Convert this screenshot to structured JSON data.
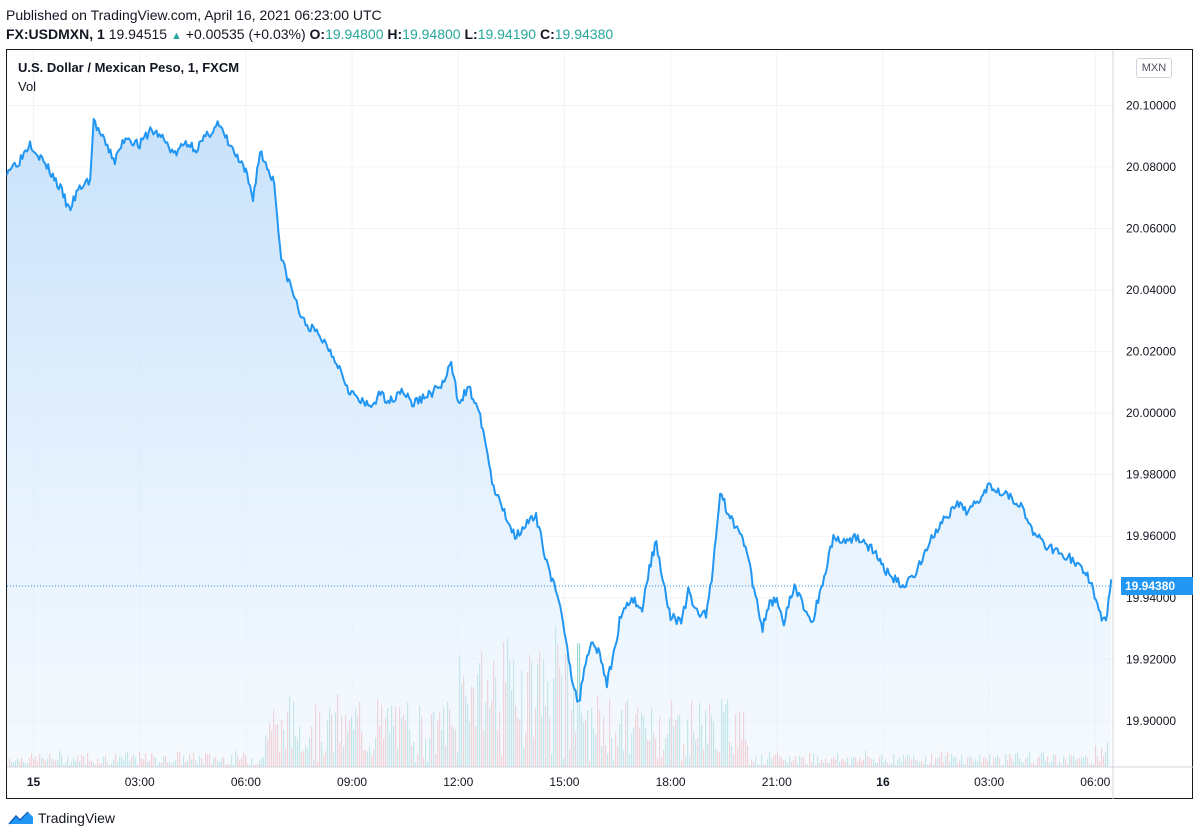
{
  "header": {
    "published": "Published on TradingView.com, April 16, 2021 06:23:00 UTC",
    "symbol": "FX:USDMXN, 1",
    "last": "19.94515",
    "arrow": "▲",
    "change": "+0.00535 (+0.03%)",
    "o_label": "O:",
    "o_value": "19.94800",
    "h_label": "H:",
    "h_value": "19.94800",
    "l_label": "L:",
    "l_value": "19.94190",
    "c_label": "C:",
    "c_value": "19.94380"
  },
  "chart": {
    "title": "U.S. Dollar / Mexican Peso, 1, FXCM",
    "vol_label": "Vol",
    "currency": "MXN",
    "current_price_label": "19.94380",
    "colors": {
      "line": "#2196f3",
      "fill_top": "#cfe6fb",
      "vol_up": "#26a69a",
      "vol_down": "#ef5350",
      "grid": "#f0f3fa",
      "price_tag": "#2196f3"
    }
  },
  "footer": {
    "brand": "TradingView"
  },
  "chart_data": {
    "type": "area",
    "title": "U.S. Dollar / Mexican Peso, 1, FXCM",
    "xlabel": "",
    "ylabel": "MXN",
    "ylim": [
      19.885,
      20.118
    ],
    "x_range_hours": [
      -0.75,
      30.5
    ],
    "y_ticks": [
      "20.10000",
      "20.08000",
      "20.06000",
      "20.04000",
      "20.02000",
      "20.00000",
      "19.98000",
      "19.96000",
      "19.94000",
      "19.92000",
      "19.90000"
    ],
    "y_tick_values": [
      20.1,
      20.08,
      20.06,
      20.04,
      20.02,
      20.0,
      19.98,
      19.96,
      19.94,
      19.92,
      19.9
    ],
    "x_ticks": [
      {
        "label": "15",
        "h": 0,
        "bold": true
      },
      {
        "label": "03:00",
        "h": 3,
        "bold": false
      },
      {
        "label": "06:00",
        "h": 6,
        "bold": false
      },
      {
        "label": "09:00",
        "h": 9,
        "bold": false
      },
      {
        "label": "12:00",
        "h": 12,
        "bold": false
      },
      {
        "label": "15:00",
        "h": 15,
        "bold": false
      },
      {
        "label": "18:00",
        "h": 18,
        "bold": false
      },
      {
        "label": "21:00",
        "h": 21,
        "bold": false
      },
      {
        "label": "16",
        "h": 24,
        "bold": true
      },
      {
        "label": "03:00",
        "h": 27,
        "bold": false
      },
      {
        "label": "06:00",
        "h": 30,
        "bold": false
      }
    ],
    "series": [
      {
        "name": "FX:USDMXN",
        "points": [
          [
            -0.75,
            20.079
          ],
          [
            -0.4,
            20.082
          ],
          [
            -0.1,
            20.088
          ],
          [
            0.2,
            20.083
          ],
          [
            0.5,
            20.078
          ],
          [
            0.8,
            20.072
          ],
          [
            1.0,
            20.066
          ],
          [
            1.3,
            20.073
          ],
          [
            1.6,
            20.076
          ],
          [
            1.7,
            20.095
          ],
          [
            2.0,
            20.088
          ],
          [
            2.3,
            20.082
          ],
          [
            2.6,
            20.09
          ],
          [
            3.0,
            20.087
          ],
          [
            3.3,
            20.092
          ],
          [
            3.6,
            20.09
          ],
          [
            4.0,
            20.084
          ],
          [
            4.3,
            20.088
          ],
          [
            4.6,
            20.086
          ],
          [
            4.9,
            20.09
          ],
          [
            5.2,
            20.094
          ],
          [
            5.5,
            20.088
          ],
          [
            5.8,
            20.082
          ],
          [
            6.0,
            20.078
          ],
          [
            6.2,
            20.07
          ],
          [
            6.4,
            20.085
          ],
          [
            6.6,
            20.08
          ],
          [
            6.8,
            20.075
          ],
          [
            7.0,
            20.05
          ],
          [
            7.3,
            20.04
          ],
          [
            7.6,
            20.03
          ],
          [
            8.0,
            20.026
          ],
          [
            8.3,
            20.022
          ],
          [
            8.6,
            20.016
          ],
          [
            8.9,
            20.008
          ],
          [
            9.2,
            20.004
          ],
          [
            9.5,
            20.002
          ],
          [
            9.8,
            20.006
          ],
          [
            10.1,
            20.004
          ],
          [
            10.4,
            20.008
          ],
          [
            10.7,
            20.003
          ],
          [
            11.0,
            20.005
          ],
          [
            11.3,
            20.007
          ],
          [
            11.6,
            20.01
          ],
          [
            11.8,
            20.016
          ],
          [
            12.0,
            20.004
          ],
          [
            12.3,
            20.008
          ],
          [
            12.5,
            20.003
          ],
          [
            12.7,
            19.995
          ],
          [
            13.0,
            19.975
          ],
          [
            13.3,
            19.968
          ],
          [
            13.6,
            19.96
          ],
          [
            13.9,
            19.964
          ],
          [
            14.2,
            19.966
          ],
          [
            14.5,
            19.952
          ],
          [
            14.8,
            19.94
          ],
          [
            15.0,
            19.93
          ],
          [
            15.2,
            19.915
          ],
          [
            15.4,
            19.905
          ],
          [
            15.6,
            19.92
          ],
          [
            15.8,
            19.926
          ],
          [
            16.0,
            19.922
          ],
          [
            16.2,
            19.912
          ],
          [
            16.4,
            19.922
          ],
          [
            16.6,
            19.935
          ],
          [
            16.9,
            19.94
          ],
          [
            17.2,
            19.936
          ],
          [
            17.4,
            19.95
          ],
          [
            17.6,
            19.958
          ],
          [
            17.8,
            19.945
          ],
          [
            18.0,
            19.934
          ],
          [
            18.3,
            19.932
          ],
          [
            18.5,
            19.942
          ],
          [
            18.7,
            19.936
          ],
          [
            19.0,
            19.934
          ],
          [
            19.2,
            19.95
          ],
          [
            19.4,
            19.975
          ],
          [
            19.6,
            19.968
          ],
          [
            19.8,
            19.964
          ],
          [
            20.0,
            19.962
          ],
          [
            20.2,
            19.952
          ],
          [
            20.4,
            19.94
          ],
          [
            20.6,
            19.93
          ],
          [
            20.8,
            19.938
          ],
          [
            21.0,
            19.94
          ],
          [
            21.2,
            19.932
          ],
          [
            21.5,
            19.944
          ],
          [
            21.8,
            19.936
          ],
          [
            22.0,
            19.932
          ],
          [
            22.3,
            19.945
          ],
          [
            22.6,
            19.96
          ],
          [
            22.9,
            19.958
          ],
          [
            23.2,
            19.96
          ],
          [
            23.5,
            19.958
          ],
          [
            23.8,
            19.954
          ],
          [
            24.0,
            19.95
          ],
          [
            24.3,
            19.946
          ],
          [
            24.6,
            19.944
          ],
          [
            24.9,
            19.948
          ],
          [
            25.2,
            19.955
          ],
          [
            25.5,
            19.962
          ],
          [
            25.8,
            19.966
          ],
          [
            26.1,
            19.97
          ],
          [
            26.4,
            19.968
          ],
          [
            26.7,
            19.972
          ],
          [
            27.0,
            19.977
          ],
          [
            27.3,
            19.975
          ],
          [
            27.6,
            19.973
          ],
          [
            27.9,
            19.97
          ],
          [
            28.2,
            19.962
          ],
          [
            28.5,
            19.958
          ],
          [
            28.8,
            19.956
          ],
          [
            29.1,
            19.954
          ],
          [
            29.4,
            19.952
          ],
          [
            29.7,
            19.948
          ],
          [
            29.9,
            19.945
          ],
          [
            30.1,
            19.935
          ],
          [
            30.3,
            19.932
          ],
          [
            30.45,
            19.946
          ]
        ]
      }
    ],
    "current_value": 19.9438,
    "volume_series_note": "volume histogram bars along bottom; heavier activity 07:00-20:00"
  }
}
